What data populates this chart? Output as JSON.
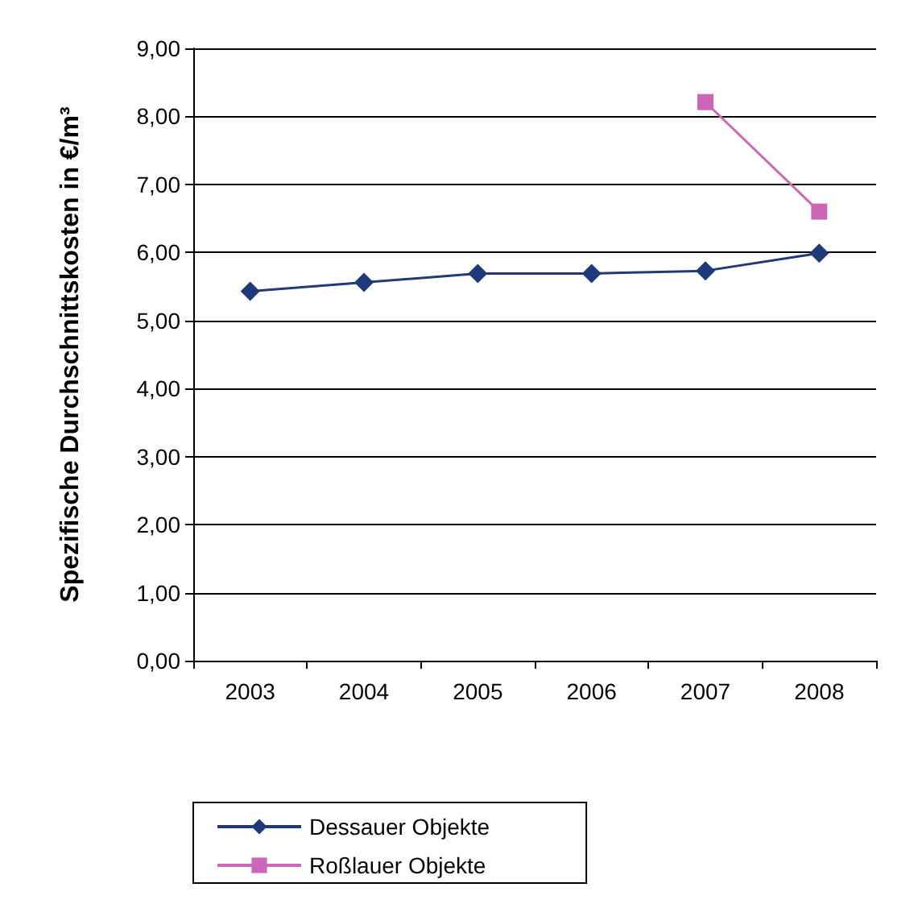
{
  "chart_data": {
    "type": "line",
    "ylabel": "Spezifische Durchschnittskosten in €/m³",
    "categories": [
      "2003",
      "2004",
      "2005",
      "2006",
      "2007",
      "2008"
    ],
    "series": [
      {
        "name": "Dessauer Objekte",
        "color": "#1f3a7a",
        "marker": "diamond",
        "values": [
          5.43,
          5.56,
          5.69,
          5.69,
          5.73,
          5.99
        ]
      },
      {
        "name": "Roßlauer Objekte",
        "color": "#cc66b8",
        "marker": "square",
        "values": [
          null,
          null,
          null,
          null,
          8.21,
          6.6
        ]
      }
    ],
    "ylim": [
      0,
      9
    ],
    "yticks": [
      {
        "value": 0,
        "label": "0,00"
      },
      {
        "value": 1,
        "label": "1,00"
      },
      {
        "value": 2,
        "label": "2,00"
      },
      {
        "value": 3,
        "label": "3,00"
      },
      {
        "value": 4,
        "label": "4,00"
      },
      {
        "value": 5,
        "label": "5,00"
      },
      {
        "value": 6,
        "label": "6,00"
      },
      {
        "value": 7,
        "label": "7,00"
      },
      {
        "value": 8,
        "label": "8,00"
      },
      {
        "value": 9,
        "label": "9,00"
      }
    ],
    "grid": "y",
    "legend": "bottom left"
  }
}
